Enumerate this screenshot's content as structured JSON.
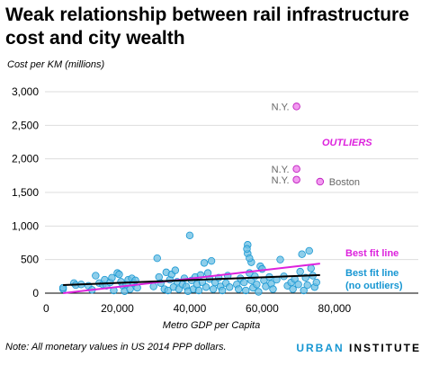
{
  "title": "Weak relationship between rail infrastructure cost and city wealth",
  "note": "Note: All monetary values in US 2014 PPP dollars.",
  "brand": {
    "part1": "URBAN",
    "part2": "INSTITUTE"
  },
  "colors": {
    "inlier_fill": "#68bde3",
    "inlier_stroke": "#1696d2",
    "outlier_fill": "#f29bf0",
    "outlier_stroke": "#c020c0",
    "best_fit": "#dd22dd",
    "best_fit_no_outliers": "#000000",
    "label_no_outliers": "#1696d2",
    "grid": "#dddddd"
  },
  "chart_data": {
    "type": "scatter",
    "ylabel": "Cost per KM (millions)",
    "xlabel": "Metro GDP per Capita",
    "xlim": [
      0,
      85000
    ],
    "ylim": [
      0,
      3000
    ],
    "x_ticks": [
      0,
      20000,
      40000,
      60000,
      80000
    ],
    "x_tick_labels": [
      "0",
      "20,000",
      "40,000",
      "60,000",
      "80,000"
    ],
    "y_ticks": [
      0,
      500,
      1000,
      1500,
      2000,
      2500,
      3000
    ],
    "y_tick_labels": [
      "0",
      "500",
      "1,000",
      "1,500",
      "2,000",
      "2,500",
      "3,000"
    ],
    "grid": "horizontal",
    "outliers_label": "OUTLIERS",
    "outliers": [
      {
        "x": 69500,
        "y": 2780,
        "label": "N.Y."
      },
      {
        "x": 69500,
        "y": 1850,
        "label": "N.Y."
      },
      {
        "x": 69500,
        "y": 1690,
        "label": "N.Y."
      },
      {
        "x": 76000,
        "y": 1660,
        "label": "Boston"
      }
    ],
    "points": [
      [
        5000,
        60
      ],
      [
        5000,
        80
      ],
      [
        8000,
        150
      ],
      [
        8500,
        120
      ],
      [
        10000,
        130
      ],
      [
        12000,
        110
      ],
      [
        13000,
        50
      ],
      [
        14000,
        260
      ],
      [
        15000,
        150
      ],
      [
        16000,
        130
      ],
      [
        16500,
        200
      ],
      [
        17000,
        110
      ],
      [
        18000,
        160
      ],
      [
        18500,
        230
      ],
      [
        19000,
        40
      ],
      [
        20000,
        300
      ],
      [
        20500,
        280
      ],
      [
        21000,
        170
      ],
      [
        21500,
        110
      ],
      [
        22000,
        30
      ],
      [
        22500,
        130
      ],
      [
        23000,
        200
      ],
      [
        23500,
        60
      ],
      [
        24000,
        220
      ],
      [
        24500,
        150
      ],
      [
        25000,
        190
      ],
      [
        25500,
        80
      ],
      [
        30000,
        100
      ],
      [
        31000,
        520
      ],
      [
        31500,
        240
      ],
      [
        32000,
        150
      ],
      [
        33000,
        60
      ],
      [
        33500,
        310
      ],
      [
        34000,
        40
      ],
      [
        34500,
        200
      ],
      [
        35000,
        280
      ],
      [
        35500,
        90
      ],
      [
        36000,
        340
      ],
      [
        36500,
        170
      ],
      [
        37000,
        60
      ],
      [
        38000,
        130
      ],
      [
        38500,
        220
      ],
      [
        39000,
        100
      ],
      [
        39500,
        30
      ],
      [
        40000,
        860
      ],
      [
        40500,
        190
      ],
      [
        41000,
        60
      ],
      [
        41500,
        240
      ],
      [
        42000,
        130
      ],
      [
        42500,
        40
      ],
      [
        43000,
        270
      ],
      [
        43500,
        160
      ],
      [
        44000,
        450
      ],
      [
        44500,
        90
      ],
      [
        45000,
        300
      ],
      [
        45500,
        210
      ],
      [
        46000,
        480
      ],
      [
        46500,
        60
      ],
      [
        47000,
        160
      ],
      [
        48000,
        230
      ],
      [
        48500,
        100
      ],
      [
        49000,
        40
      ],
      [
        50000,
        150
      ],
      [
        50500,
        260
      ],
      [
        51000,
        90
      ],
      [
        53000,
        130
      ],
      [
        53500,
        60
      ],
      [
        54000,
        220
      ],
      [
        55000,
        160
      ],
      [
        55500,
        40
      ],
      [
        56000,
        720
      ],
      [
        56500,
        300
      ],
      [
        57000,
        190
      ],
      [
        57500,
        80
      ],
      [
        58000,
        250
      ],
      [
        58500,
        130
      ],
      [
        59000,
        20
      ],
      [
        59500,
        400
      ],
      [
        60000,
        360
      ],
      [
        60500,
        190
      ],
      [
        61000,
        100
      ],
      [
        62000,
        240
      ],
      [
        62500,
        140
      ],
      [
        63000,
        60
      ],
      [
        64000,
        200
      ],
      [
        65000,
        500
      ],
      [
        66000,
        250
      ],
      [
        67000,
        110
      ],
      [
        68000,
        160
      ],
      [
        68500,
        60
      ],
      [
        69000,
        210
      ],
      [
        70000,
        130
      ],
      [
        70500,
        320
      ],
      [
        71000,
        580
      ],
      [
        71500,
        40
      ],
      [
        72000,
        230
      ],
      [
        72500,
        120
      ],
      [
        73000,
        630
      ],
      [
        73500,
        370
      ],
      [
        74000,
        260
      ],
      [
        74500,
        90
      ],
      [
        75000,
        160
      ],
      [
        56000,
        590
      ],
      [
        57000,
        460
      ],
      [
        56500,
        520
      ],
      [
        55800,
        660
      ]
    ],
    "lines": [
      {
        "name": "Best fit line",
        "x": [
          5000,
          76000
        ],
        "y": [
          0,
          440
        ]
      },
      {
        "name": "Best fit line (no outliers)",
        "x": [
          5000,
          76000
        ],
        "y": [
          120,
          270
        ]
      }
    ]
  }
}
